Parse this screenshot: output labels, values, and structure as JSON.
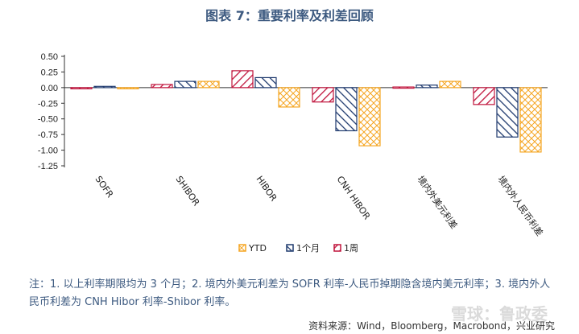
{
  "title": "图表 7：重要利率及利差回顾",
  "chart_data": {
    "type": "bar",
    "categories": [
      "SOFR",
      "SHIBOR",
      "HIBOR",
      "CNH HIBOR",
      "境内外美元利差",
      "境内外人民币利差"
    ],
    "series": [
      {
        "name": "1周",
        "color": "#c0143c",
        "pattern": "diag-right",
        "values": [
          -0.01,
          0.05,
          0.27,
          -0.23,
          0.01,
          -0.27
        ]
      },
      {
        "name": "1个月",
        "color": "#1f3a6e",
        "pattern": "diag-left",
        "values": [
          0.02,
          0.1,
          0.16,
          -0.69,
          0.04,
          -0.79
        ]
      },
      {
        "name": "YTD",
        "color": "#f5a623",
        "pattern": "cross",
        "values": [
          0.0,
          0.1,
          -0.31,
          -0.93,
          0.1,
          -1.03
        ]
      }
    ],
    "legend_order": [
      "YTD",
      "1个月",
      "1周"
    ],
    "yticks": [
      "0.50",
      "0.25",
      "0.00",
      "-0.25",
      "-0.50",
      "-0.75",
      "-1.00",
      "-1.25"
    ],
    "ylim": [
      -1.25,
      0.5
    ],
    "legend_position": "bottom-center",
    "grid": false
  },
  "note": "注：1. 以上利率期限均为 3 个月；2. 境内外美元利差为 SOFR 利率-人民币掉期隐含境内美元利率；3. 境内外人民币利差为 CNH Hibor 利率-Shibor 利率。",
  "source": "资料来源：Wind，Bloomberg，Macrobond，兴业研究",
  "watermark": "雪球：鲁政委"
}
